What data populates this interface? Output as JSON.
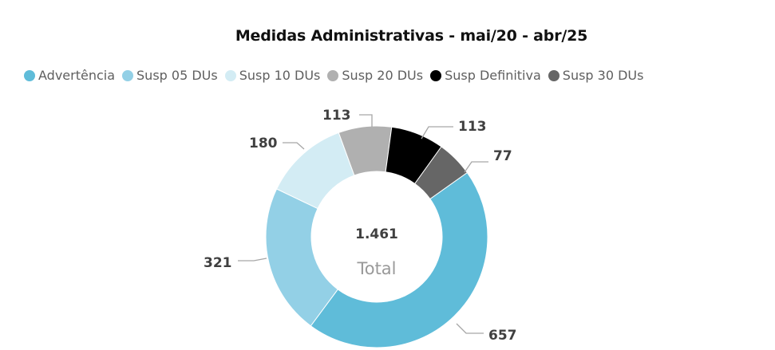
{
  "chart_data": {
    "type": "pie",
    "variant": "donut",
    "title": "Medidas Administrativas - mai/20 -  abr/25",
    "legend_position": "top-left",
    "categories": [
      "Advertência",
      "Susp 05 DUs",
      "Susp 10 DUs",
      "Susp 20 DUs",
      "Susp Definitiva",
      "Susp 30 DUs"
    ],
    "values": [
      657,
      321,
      180,
      113,
      113,
      77
    ],
    "colors": [
      "#5fbcd9",
      "#93d0e6",
      "#d3ecf4",
      "#b0b0b0",
      "#000000",
      "#666666"
    ],
    "data_labels": [
      "657",
      "321",
      "180",
      "113",
      "113",
      "77"
    ],
    "center": {
      "value": "1.461",
      "label": "Total"
    }
  }
}
